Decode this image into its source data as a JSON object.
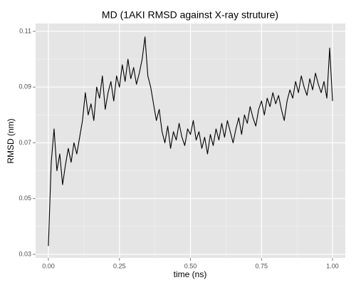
{
  "chart_data": {
    "type": "line",
    "title": "MD (1AKI RMSD against X-ray struture)",
    "x_label": "time (ns)",
    "y_label": "RMSD (nm)",
    "x": [
      0,
      0.01,
      0.02,
      0.03,
      0.04,
      0.05,
      0.06,
      0.07,
      0.08,
      0.09,
      0.1,
      0.11,
      0.12,
      0.13,
      0.14,
      0.15,
      0.16,
      0.17,
      0.18,
      0.19,
      0.2,
      0.21,
      0.22,
      0.23,
      0.24,
      0.25,
      0.26,
      0.27,
      0.28,
      0.29,
      0.3,
      0.31,
      0.32,
      0.33,
      0.34,
      0.35,
      0.36,
      0.37,
      0.38,
      0.39,
      0.4,
      0.41,
      0.42,
      0.43,
      0.44,
      0.45,
      0.46,
      0.47,
      0.48,
      0.49,
      0.5,
      0.51,
      0.52,
      0.53,
      0.54,
      0.55,
      0.56,
      0.57,
      0.58,
      0.59,
      0.6,
      0.61,
      0.62,
      0.63,
      0.64,
      0.65,
      0.66,
      0.67,
      0.68,
      0.69,
      0.7,
      0.71,
      0.72,
      0.73,
      0.74,
      0.75,
      0.76,
      0.77,
      0.78,
      0.79,
      0.8,
      0.81,
      0.82,
      0.83,
      0.84,
      0.85,
      0.86,
      0.87,
      0.88,
      0.89,
      0.9,
      0.91,
      0.92,
      0.93,
      0.94,
      0.95,
      0.96,
      0.97,
      0.98,
      0.99,
      1
    ],
    "series": [
      {
        "name": "RMSD",
        "color": "#000000",
        "values": [
          0.033,
          0.063,
          0.075,
          0.06,
          0.066,
          0.055,
          0.062,
          0.068,
          0.063,
          0.07,
          0.066,
          0.072,
          0.078,
          0.088,
          0.08,
          0.084,
          0.078,
          0.09,
          0.086,
          0.094,
          0.082,
          0.088,
          0.092,
          0.085,
          0.094,
          0.09,
          0.098,
          0.092,
          0.1,
          0.093,
          0.097,
          0.091,
          0.095,
          0.1,
          0.108,
          0.094,
          0.09,
          0.084,
          0.078,
          0.082,
          0.074,
          0.07,
          0.076,
          0.068,
          0.074,
          0.071,
          0.077,
          0.072,
          0.069,
          0.075,
          0.073,
          0.078,
          0.071,
          0.074,
          0.068,
          0.072,
          0.066,
          0.073,
          0.069,
          0.075,
          0.071,
          0.077,
          0.072,
          0.078,
          0.074,
          0.07,
          0.075,
          0.079,
          0.073,
          0.08,
          0.077,
          0.083,
          0.079,
          0.076,
          0.082,
          0.085,
          0.08,
          0.086,
          0.083,
          0.088,
          0.084,
          0.087,
          0.082,
          0.078,
          0.085,
          0.089,
          0.086,
          0.092,
          0.088,
          0.094,
          0.09,
          0.087,
          0.093,
          0.089,
          0.095,
          0.091,
          0.088,
          0.092,
          0.086,
          0.104,
          0.085
        ]
      }
    ],
    "xlim": [
      -0.045,
      1.045
    ],
    "ylim": [
      0.0287,
      0.1128
    ],
    "xticks": [
      {
        "value": 0,
        "label": "0.00"
      },
      {
        "value": 0.25,
        "label": "0.25"
      },
      {
        "value": 0.5,
        "label": "0.50"
      },
      {
        "value": 0.75,
        "label": "0.75"
      },
      {
        "value": 1,
        "label": "1.00"
      }
    ],
    "yticks": [
      0.03,
      0.05,
      0.07,
      0.09,
      0.11
    ],
    "x_minor_ticks": [
      0.125,
      0.375,
      0.625,
      0.875
    ],
    "y_minor_ticks": [
      0.04,
      0.06,
      0.08,
      0.1
    ],
    "grid": true
  }
}
